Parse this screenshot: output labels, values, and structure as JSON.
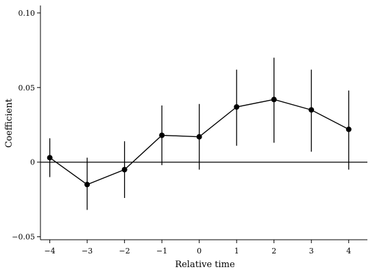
{
  "chart_data": {
    "type": "line",
    "title": "",
    "xlabel": "Relative time",
    "ylabel": "Coefficient",
    "x": [
      -4,
      -3,
      -2,
      -1,
      0,
      1,
      2,
      3,
      4
    ],
    "series": [
      {
        "values": [
          0.003,
          -0.015,
          -0.005,
          0.018,
          0.017,
          0.037,
          0.042,
          0.035,
          0.022
        ],
        "ci_low": [
          -0.01,
          -0.032,
          -0.024,
          -0.002,
          -0.005,
          0.011,
          0.013,
          0.007,
          -0.005
        ],
        "ci_high": [
          0.016,
          0.003,
          0.014,
          0.038,
          0.039,
          0.062,
          0.07,
          0.062,
          0.048
        ]
      }
    ],
    "xlim": [
      -4.25,
      4.5
    ],
    "ylim": [
      -0.052,
      0.105
    ],
    "x_ticks": [
      -4,
      -3,
      -2,
      -1,
      0,
      1,
      2,
      3,
      4
    ],
    "x_tick_labels": [
      "−4",
      "−3",
      "−2",
      "−1",
      "0",
      "1",
      "2",
      "3",
      "4"
    ],
    "y_ticks": [
      -0.05,
      0,
      0.05,
      0.1
    ],
    "y_tick_labels": [
      "−0.05",
      "0",
      "0.05",
      "0.10"
    ],
    "reference_line_y": 0,
    "grid": false,
    "colors": {
      "line": "#000000",
      "marker": "#000000",
      "axis": "#000000"
    }
  }
}
